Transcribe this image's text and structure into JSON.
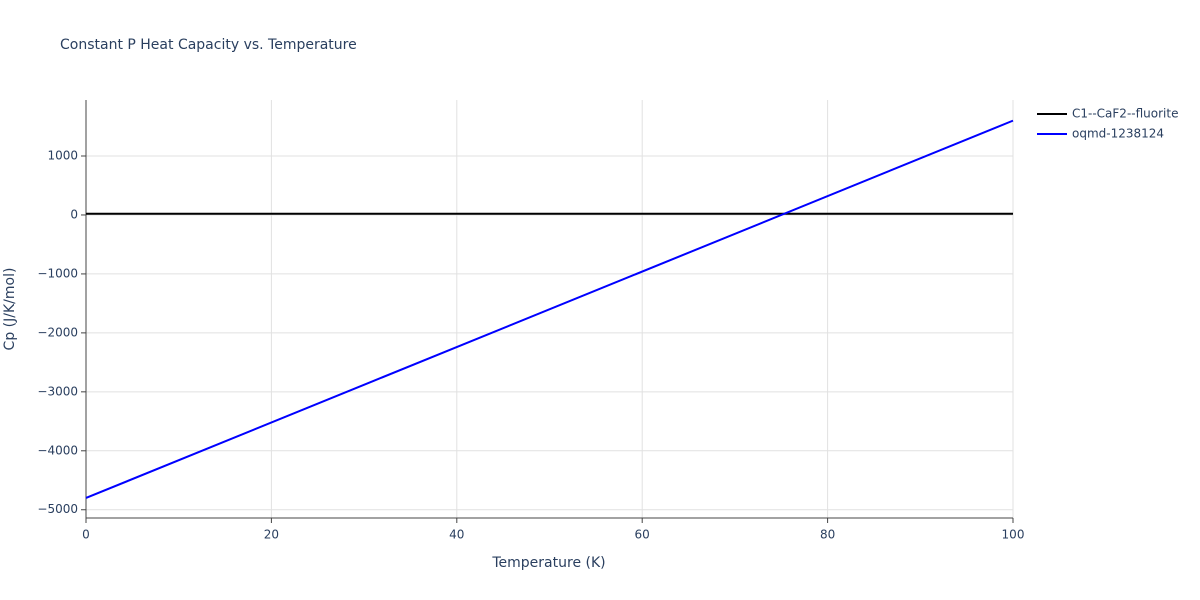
{
  "chart_data": {
    "type": "line",
    "title": "Constant P Heat Capacity vs. Temperature",
    "x_label": "Temperature (K)",
    "y_label": "Cp (J/K/mol)",
    "x": [
      0,
      100
    ],
    "series": [
      {
        "name": "C1--CaF2--fluorite",
        "color": "#000000",
        "values": [
          20,
          20
        ]
      },
      {
        "name": "oqmd-1238124",
        "color": "#0000ff",
        "values": [
          -4800,
          1600
        ]
      }
    ],
    "xlim": [
      0,
      100
    ],
    "xticks": [
      0,
      20,
      40,
      60,
      80,
      100
    ],
    "ylim": [
      -5140,
      1950
    ],
    "yticks": [
      {
        "value": -5000,
        "label": "−5000"
      },
      {
        "value": -4000,
        "label": "−4000"
      },
      {
        "value": -3000,
        "label": "−3000"
      },
      {
        "value": -2000,
        "label": "−2000"
      },
      {
        "value": -1000,
        "label": "−1000"
      },
      0,
      1000
    ],
    "grid": true,
    "legend": "right"
  }
}
